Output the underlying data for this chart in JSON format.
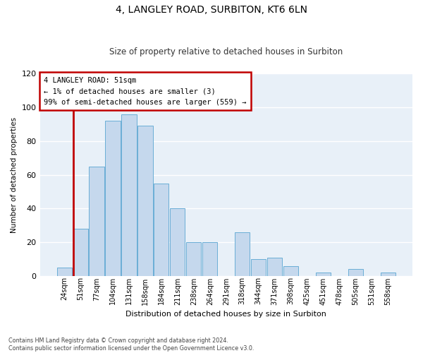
{
  "title": "4, LANGLEY ROAD, SURBITON, KT6 6LN",
  "subtitle": "Size of property relative to detached houses in Surbiton",
  "xlabel": "Distribution of detached houses by size in Surbiton",
  "ylabel": "Number of detached properties",
  "categories": [
    "24sqm",
    "51sqm",
    "77sqm",
    "104sqm",
    "131sqm",
    "158sqm",
    "184sqm",
    "211sqm",
    "238sqm",
    "264sqm",
    "291sqm",
    "318sqm",
    "344sqm",
    "371sqm",
    "398sqm",
    "425sqm",
    "451sqm",
    "478sqm",
    "505sqm",
    "531sqm",
    "558sqm"
  ],
  "values": [
    5,
    28,
    65,
    92,
    96,
    89,
    55,
    40,
    20,
    20,
    0,
    26,
    10,
    11,
    6,
    0,
    2,
    0,
    4,
    0,
    2
  ],
  "highlight_index": 1,
  "highlight_color": "#c00000",
  "bar_color": "#c5d8ed",
  "bar_edge_color": "#6aaed6",
  "ylim": [
    0,
    120
  ],
  "yticks": [
    0,
    20,
    40,
    60,
    80,
    100,
    120
  ],
  "annotation_title": "4 LANGLEY ROAD: 51sqm",
  "annotation_line1": "← 1% of detached houses are smaller (3)",
  "annotation_line2": "99% of semi-detached houses are larger (559) →",
  "footer_line1": "Contains HM Land Registry data © Crown copyright and database right 2024.",
  "footer_line2": "Contains public sector information licensed under the Open Government Licence v3.0.",
  "plot_bg_color": "#e8f0f8",
  "fig_bg_color": "#ffffff",
  "grid_color": "#ffffff",
  "annotation_box_facecolor": "#ffffff",
  "annotation_box_edgecolor": "#c00000",
  "title_fontsize": 10,
  "subtitle_fontsize": 8.5
}
